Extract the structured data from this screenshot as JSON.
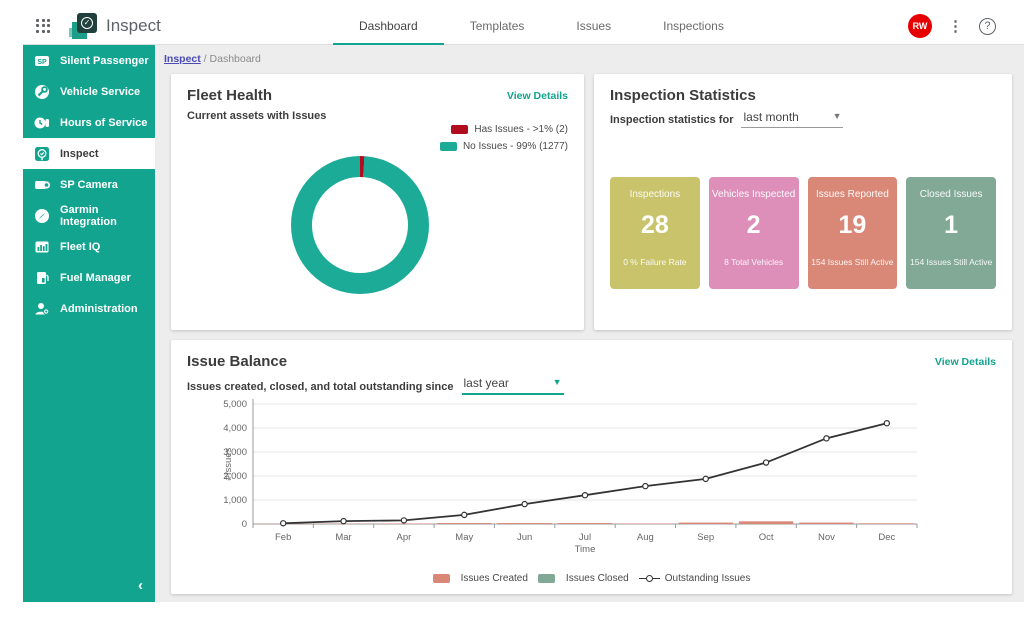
{
  "colors": {
    "brand_teal": "#12a48e",
    "donut_teal": "#1bab97",
    "issue_red": "#b10d1e",
    "salmon": "#d98877",
    "sage_green": "#82a996",
    "avatar_red": "#e60000",
    "link_purple": "#4b4bb5"
  },
  "topbar": {
    "app_title": "Inspect",
    "tabs": [
      {
        "label": "Dashboard",
        "active": true
      },
      {
        "label": "Templates",
        "active": false
      },
      {
        "label": "Issues",
        "active": false
      },
      {
        "label": "Inspections",
        "active": false
      }
    ],
    "avatar_initials": "RW",
    "kebab": "⋮",
    "help": "?"
  },
  "sidebar": {
    "items": [
      {
        "label": "Silent Passenger",
        "icon": "sp-badge-icon",
        "active": false
      },
      {
        "label": "Vehicle Service",
        "icon": "wrench-circle-icon",
        "active": false
      },
      {
        "label": "Hours of Service",
        "icon": "clock-plug-icon",
        "active": false
      },
      {
        "label": "Inspect",
        "icon": "inspect-check-icon",
        "active": true
      },
      {
        "label": "SP Camera",
        "icon": "camera-icon",
        "active": false
      },
      {
        "label": "Garmin Integration",
        "icon": "compass-icon",
        "active": false
      },
      {
        "label": "Fleet IQ",
        "icon": "bar-chart-icon",
        "active": false
      },
      {
        "label": "Fuel Manager",
        "icon": "fuel-pump-icon",
        "active": false
      },
      {
        "label": "Administration",
        "icon": "person-gear-icon",
        "active": false
      }
    ],
    "collapse": "‹"
  },
  "breadcrumb": {
    "link": "Inspect",
    "rest": " / Dashboard"
  },
  "fleet_health": {
    "title": "Fleet Health",
    "subtitle": "Current assets with Issues",
    "view_details": "View Details",
    "chart_data": {
      "type": "pie",
      "donut": true,
      "slices": [
        {
          "label": "Has Issues - >1% (2)",
          "pct": 1,
          "count": 2,
          "color": "#b10d1e"
        },
        {
          "label": "No Issues - 99% (1277)",
          "pct": 99,
          "count": 1277,
          "color": "#1bab97"
        }
      ]
    }
  },
  "inspection_statistics": {
    "title": "Inspection Statistics",
    "filter_label": "Inspection statistics for",
    "filter_value": "last month",
    "cards": [
      {
        "title": "Inspections",
        "value": "28",
        "footer": "0 % Failure Rate",
        "color": "#c9c46b"
      },
      {
        "title": "Vehicles Inspected",
        "value": "2",
        "footer": "8 Total Vehicles",
        "color": "#dd8fba"
      },
      {
        "title": "Issues Reported",
        "value": "19",
        "footer": "154 Issues Still Active",
        "color": "#d98877"
      },
      {
        "title": "Closed Issues",
        "value": "1",
        "footer": "154 Issues Still Active",
        "color": "#82a996"
      }
    ]
  },
  "issue_balance": {
    "title": "Issue Balance",
    "filter_label": "Issues created, closed, and total outstanding since",
    "filter_value": "last year",
    "view_details": "View Details",
    "chart_data": {
      "type": "line",
      "categories": [
        "Feb",
        "Mar",
        "Apr",
        "May",
        "Jun",
        "Jul",
        "Aug",
        "Sep",
        "Oct",
        "Nov",
        "Dec"
      ],
      "series": [
        {
          "name": "Issues Created",
          "type": "bar",
          "color": "#d98877",
          "values": [
            10,
            15,
            20,
            40,
            40,
            40,
            20,
            60,
            110,
            60,
            30
          ]
        },
        {
          "name": "Issues Closed",
          "type": "bar",
          "color": "#82a996",
          "values": [
            0,
            0,
            0,
            0,
            0,
            0,
            0,
            0,
            0,
            0,
            0
          ]
        },
        {
          "name": "Outstanding Issues",
          "type": "line",
          "color": "#333333",
          "values": [
            30,
            120,
            150,
            380,
            830,
            1200,
            1580,
            1880,
            2560,
            3570,
            4200
          ]
        }
      ],
      "xlabel": "Time",
      "ylabel": "#Issues",
      "ylim": [
        0,
        5000
      ],
      "yticks": [
        0,
        1000,
        2000,
        3000,
        4000,
        5000
      ],
      "grid": true,
      "legend_position": "bottom"
    }
  }
}
